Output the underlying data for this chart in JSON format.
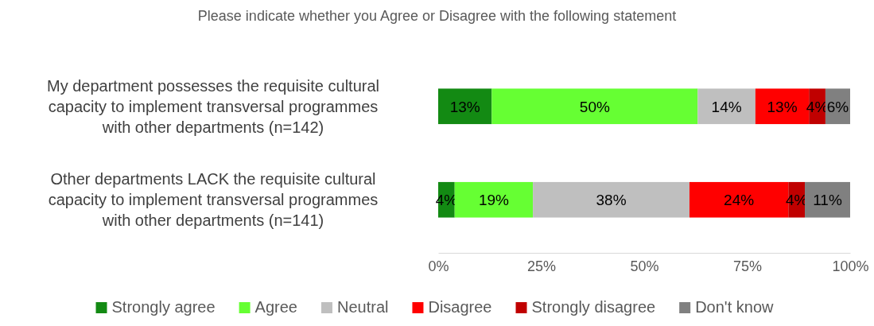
{
  "chart_data": {
    "type": "bar",
    "orientation": "horizontal",
    "stacked": true,
    "title": "Please indicate whether you Agree or Disagree with the following statement",
    "categories": [
      "My department possesses the requisite cultural capacity to implement transversal programmes with other departments (n=142)",
      "Other departments LACK the requisite cultural capacity to implement transversal programmes with other departments (n=141)"
    ],
    "series": [
      {
        "name": "Strongly agree",
        "color": "#138a13",
        "values": [
          13,
          4
        ],
        "value_labels": [
          "13%",
          "4%"
        ]
      },
      {
        "name": "Agree",
        "color": "#66ff33",
        "values": [
          50,
          19
        ],
        "value_labels": [
          "50%",
          "19%"
        ]
      },
      {
        "name": "Neutral",
        "color": "#bfbfbf",
        "values": [
          14,
          38
        ],
        "value_labels": [
          "14%",
          "38%"
        ]
      },
      {
        "name": "Disagree",
        "color": "#ff0000",
        "values": [
          13,
          24
        ],
        "value_labels": [
          "13%",
          "24%"
        ]
      },
      {
        "name": "Strongly disagree",
        "color": "#c00000",
        "values": [
          4,
          4
        ],
        "value_labels": [
          "4%",
          "4%"
        ]
      },
      {
        "name": "Don't know",
        "color": "#808080",
        "values": [
          6,
          11
        ],
        "value_labels": [
          "6%",
          "11%"
        ]
      }
    ],
    "xlim": [
      0,
      100
    ],
    "xticks": [
      {
        "value": 0,
        "label": "0%"
      },
      {
        "value": 25,
        "label": "25%"
      },
      {
        "value": 50,
        "label": "50%"
      },
      {
        "value": 75,
        "label": "75%"
      },
      {
        "value": 100,
        "label": "100%"
      }
    ],
    "legend": "bottom"
  }
}
